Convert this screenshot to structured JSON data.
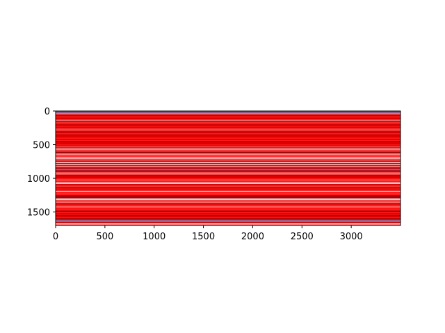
{
  "chart_data": {
    "type": "heatmap",
    "title": "",
    "xlabel": "",
    "ylabel": "",
    "x_range": [
      0,
      3500
    ],
    "y_range": [
      0,
      1700
    ],
    "y_inverted": true,
    "x_ticks": [
      0,
      500,
      1000,
      1500,
      2000,
      2500,
      3000
    ],
    "x_tick_labels": [
      "0",
      "500",
      "1000",
      "1500",
      "2000",
      "2500",
      "3000"
    ],
    "y_ticks": [
      0,
      500,
      1000,
      1500
    ],
    "y_tick_labels": [
      "0",
      "500",
      "1000",
      "1500"
    ],
    "grid": false,
    "colors": {
      "background": "#ffffff",
      "frame": "#000000",
      "dominant_band": "#e8000b",
      "band_palette": [
        "#e00000",
        "#ff1a1a",
        "#f04848",
        "#ff8080",
        "#ffc2c2",
        "#ffe8e8",
        "#c40000",
        "#a80000",
        "#7a0000",
        "#5a0a1e",
        "#7070a8"
      ]
    },
    "description_of_content": "horizontal stripes varying along the y axis, constant along the x axis"
  }
}
